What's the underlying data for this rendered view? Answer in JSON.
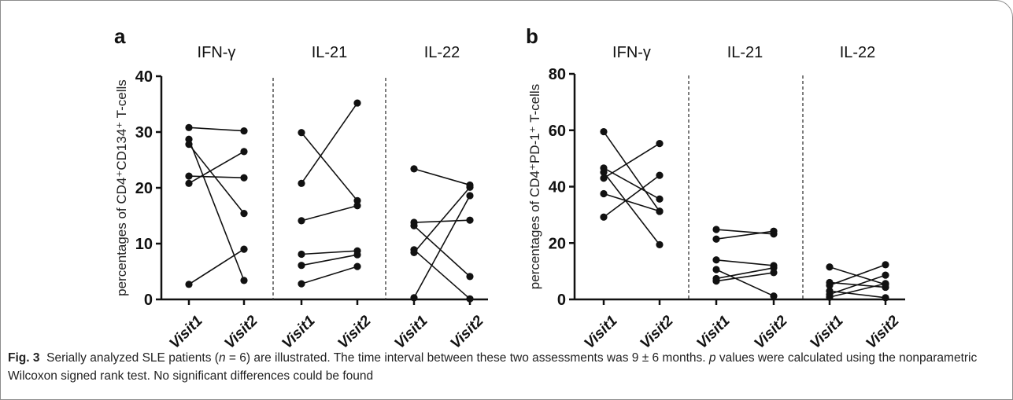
{
  "chart_data": [
    {
      "type": "line",
      "panel_label": "a",
      "ylabel": "percentages of CD4⁺CD134⁺ T-cells",
      "ylim": [
        0,
        40
      ],
      "yticks": [
        0,
        10,
        20,
        30,
        40
      ],
      "groups": [
        {
          "name": "IFN-γ",
          "categories": [
            "Visit1",
            "Visit2"
          ],
          "pairs": [
            [
              30.8,
              30.2
            ],
            [
              28.7,
              3.4
            ],
            [
              27.8,
              15.4
            ],
            [
              22.1,
              21.8
            ],
            [
              20.8,
              26.5
            ],
            [
              2.7,
              9.0
            ]
          ]
        },
        {
          "name": "IL-21",
          "categories": [
            "Visit1",
            "Visit2"
          ],
          "pairs": [
            [
              29.9,
              17.7
            ],
            [
              20.8,
              35.2
            ],
            [
              14.1,
              16.8
            ],
            [
              8.1,
              8.7
            ],
            [
              6.1,
              8.0
            ],
            [
              2.8,
              5.9
            ]
          ]
        },
        {
          "name": "IL-22",
          "categories": [
            "Visit1",
            "Visit2"
          ],
          "pairs": [
            [
              23.4,
              20.5
            ],
            [
              13.8,
              14.2
            ],
            [
              13.2,
              4.1
            ],
            [
              8.9,
              0.1
            ],
            [
              8.4,
              20.1
            ],
            [
              0.3,
              18.6
            ]
          ]
        }
      ]
    },
    {
      "type": "line",
      "panel_label": "b",
      "ylabel": "percentages of CD4⁺PD-1⁺ T-cells",
      "ylim": [
        0,
        80
      ],
      "yticks": [
        0,
        20,
        40,
        60,
        80
      ],
      "groups": [
        {
          "name": "IFN-γ",
          "categories": [
            "Visit1",
            "Visit2"
          ],
          "pairs": [
            [
              59.5,
              31.2
            ],
            [
              46.6,
              35.6
            ],
            [
              45.1,
              19.4
            ],
            [
              43.0,
              55.3
            ],
            [
              37.5,
              31.3
            ],
            [
              29.2,
              44.0
            ]
          ]
        },
        {
          "name": "IL-21",
          "categories": [
            "Visit1",
            "Visit2"
          ],
          "pairs": [
            [
              24.8,
              23.2
            ],
            [
              21.4,
              24.2
            ],
            [
              14.0,
              12.0
            ],
            [
              10.6,
              1.2
            ],
            [
              7.4,
              11.2
            ],
            [
              6.5,
              9.5
            ]
          ]
        },
        {
          "name": "IL-22",
          "categories": [
            "Visit1",
            "Visit2"
          ],
          "pairs": [
            [
              11.5,
              5.3
            ],
            [
              6.0,
              4.3
            ],
            [
              5.0,
              12.3
            ],
            [
              3.0,
              0.6
            ],
            [
              1.8,
              8.6
            ],
            [
              0.8,
              5.6
            ]
          ]
        }
      ]
    }
  ],
  "caption": {
    "fig_label": "Fig. 3",
    "part1": "Serially analyzed SLE patients (",
    "n_symbol": "n",
    "part2": " = 6) are illustrated. The time interval between these two assessments was 9 ± 6 months. ",
    "p_symbol": "p",
    "part3": " values were calculated using the nonparametric Wilcoxon signed rank test. No significant differences could be found"
  }
}
